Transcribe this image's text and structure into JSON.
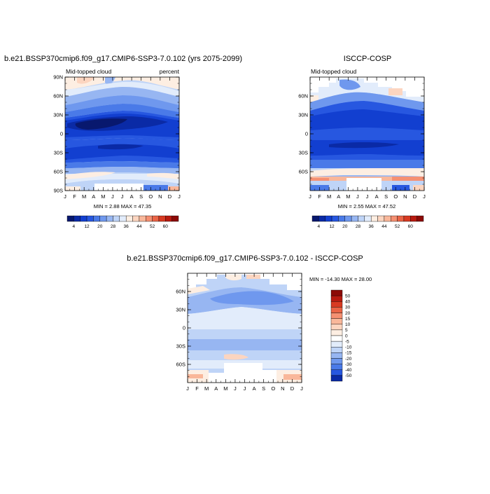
{
  "months": [
    "J",
    "F",
    "M",
    "A",
    "M",
    "J",
    "J",
    "A",
    "S",
    "O",
    "N",
    "D",
    "J"
  ],
  "panels": [
    {
      "title": "b.e21.BSSP370cmip6.f09_g17.CMIP6-SSP3-7.0.102 (yrs 2075-2099)",
      "left_label": "Mid-topped cloud",
      "right_label": "percent",
      "min_max_text": "MIN =   2.88 MAX =  47.35"
    },
    {
      "title": "ISCCP-COSP",
      "left_label": "Mid-topped cloud",
      "right_label": "",
      "min_max_text": "MIN =   2.55 MAX =  47.52"
    },
    {
      "title": "b.e21.BSSP370cmip6.f09_g17.CMIP6-SSP3-7.0.102 - ISCCP-COSP",
      "left_label": "",
      "right_label": "",
      "min_max_text": "MIN = -14.30 MAX =  28.00"
    }
  ],
  "colorbar_main": {
    "tick_labels": [
      "4",
      "12",
      "20",
      "28",
      "36",
      "44",
      "52",
      "60"
    ],
    "colors": [
      "#08186e",
      "#0a2aa6",
      "#123fd0",
      "#2757e0",
      "#4a7ae8",
      "#6f98ee",
      "#97b6f2",
      "#bfd4f7",
      "#e2ecfb",
      "#fdeee2",
      "#fcd5c0",
      "#f9b79a",
      "#f59072",
      "#ea6446",
      "#d83a22",
      "#b81a10",
      "#8c0a06"
    ]
  },
  "colorbar_diff": {
    "tick_labels": [
      "50",
      "40",
      "30",
      "20",
      "15",
      "10",
      "5",
      "0",
      "-5",
      "-10",
      "-15",
      "-20",
      "-30",
      "-40",
      "-50"
    ],
    "colors": [
      "#8c0a06",
      "#b81a10",
      "#d83a22",
      "#ea6446",
      "#f59072",
      "#f9b79a",
      "#fcd5c0",
      "#fdeee2",
      "#ffffff",
      "#e2ecfb",
      "#bfd4f7",
      "#97b6f2",
      "#6f98ee",
      "#4a7ae8",
      "#2757e0",
      "#0a2aa6"
    ]
  },
  "chart_data": [
    {
      "type": "heatmap",
      "title": "b.e21.BSSP370cmip6.f09_g17.CMIP6-SSP3-7.0.102 (yrs 2075-2099)",
      "subtitle": "Mid-topped cloud",
      "units": "percent",
      "x": [
        "J",
        "F",
        "M",
        "A",
        "M",
        "J",
        "J",
        "A",
        "S",
        "O",
        "N",
        "D",
        "J"
      ],
      "y_ticks": [
        "90S",
        "60S",
        "30S",
        "0",
        "30N",
        "60N",
        "90N"
      ],
      "ylim": [
        -90,
        90
      ],
      "min": 2.88,
      "max": 47.35,
      "levels": [
        4,
        8,
        12,
        16,
        20,
        24,
        28,
        32,
        36,
        40,
        44,
        48,
        52,
        56,
        60
      ]
    },
    {
      "type": "heatmap",
      "title": "ISCCP-COSP",
      "subtitle": "Mid-topped cloud",
      "x": [
        "J",
        "F",
        "M",
        "A",
        "M",
        "J",
        "J",
        "A",
        "S",
        "O",
        "N",
        "D",
        "J"
      ],
      "y_ticks": [
        "60S",
        "30S",
        "0",
        "30N",
        "60N"
      ],
      "min": 2.55,
      "max": 47.52,
      "levels": [
        4,
        8,
        12,
        16,
        20,
        24,
        28,
        32,
        36,
        40,
        44,
        48,
        52,
        56,
        60
      ]
    },
    {
      "type": "heatmap",
      "title": "b.e21.BSSP370cmip6.f09_g17.CMIP6-SSP3-7.0.102 - ISCCP-COSP",
      "x": [
        "J",
        "F",
        "M",
        "A",
        "M",
        "J",
        "J",
        "A",
        "S",
        "O",
        "N",
        "D",
        "J"
      ],
      "y_ticks": [
        "60S",
        "30S",
        "0",
        "30N",
        "60N"
      ],
      "min": -14.3,
      "max": 28.0,
      "levels": [
        -50,
        -40,
        -30,
        -20,
        -15,
        -10,
        -5,
        0,
        5,
        10,
        15,
        20,
        30,
        40,
        50
      ]
    }
  ]
}
